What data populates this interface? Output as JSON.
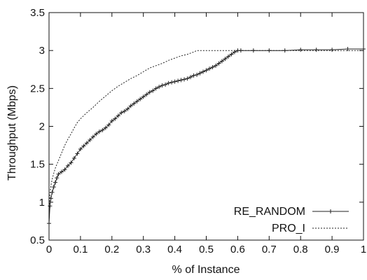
{
  "chart_data": {
    "type": "line",
    "title": "",
    "xlabel": "% of Instance",
    "ylabel": "Throughput (Mbps)",
    "xlim": [
      0,
      1
    ],
    "ylim": [
      0.5,
      3.5
    ],
    "x_ticks": [
      "0",
      "0.1",
      "0.2",
      "0.3",
      "0.4",
      "0.5",
      "0.6",
      "0.7",
      "0.8",
      "0.9",
      "1"
    ],
    "y_ticks": [
      "0.5",
      "1",
      "1.5",
      "2",
      "2.5",
      "3",
      "3.5"
    ],
    "grid": false,
    "legend_position": "bottom-right",
    "series": [
      {
        "name": "RE_RANDOM",
        "line_style": "solid",
        "marker": "plus",
        "color": "#222222",
        "x": [
          0.0,
          0.003,
          0.006,
          0.01,
          0.015,
          0.02,
          0.025,
          0.03,
          0.04,
          0.05,
          0.06,
          0.07,
          0.08,
          0.09,
          0.1,
          0.11,
          0.12,
          0.13,
          0.14,
          0.15,
          0.16,
          0.17,
          0.18,
          0.19,
          0.2,
          0.21,
          0.22,
          0.23,
          0.24,
          0.25,
          0.26,
          0.27,
          0.28,
          0.29,
          0.3,
          0.31,
          0.32,
          0.33,
          0.34,
          0.35,
          0.36,
          0.37,
          0.38,
          0.39,
          0.4,
          0.41,
          0.42,
          0.43,
          0.44,
          0.45,
          0.46,
          0.47,
          0.48,
          0.49,
          0.5,
          0.51,
          0.52,
          0.53,
          0.54,
          0.55,
          0.56,
          0.57,
          0.58,
          0.59,
          0.6,
          0.61,
          0.65,
          0.7,
          0.75,
          0.8,
          0.85,
          0.9,
          0.95,
          1.0
        ],
        "y": [
          0.72,
          0.95,
          1.05,
          1.13,
          1.2,
          1.26,
          1.32,
          1.37,
          1.4,
          1.43,
          1.48,
          1.52,
          1.58,
          1.64,
          1.7,
          1.74,
          1.78,
          1.82,
          1.86,
          1.9,
          1.93,
          1.95,
          1.98,
          2.02,
          2.07,
          2.1,
          2.14,
          2.18,
          2.2,
          2.23,
          2.27,
          2.3,
          2.33,
          2.36,
          2.39,
          2.42,
          2.45,
          2.47,
          2.5,
          2.52,
          2.54,
          2.55,
          2.57,
          2.58,
          2.59,
          2.6,
          2.61,
          2.62,
          2.63,
          2.65,
          2.67,
          2.68,
          2.7,
          2.72,
          2.74,
          2.76,
          2.78,
          2.8,
          2.83,
          2.86,
          2.89,
          2.92,
          2.95,
          2.98,
          3.0,
          3.0,
          3.0,
          3.0,
          3.0,
          3.01,
          3.01,
          3.01,
          3.02,
          3.02
        ]
      },
      {
        "name": "PRO_I",
        "line_style": "dashed",
        "marker": "none",
        "color": "#222222",
        "x": [
          0.0,
          0.003,
          0.006,
          0.01,
          0.015,
          0.02,
          0.03,
          0.04,
          0.05,
          0.06,
          0.07,
          0.08,
          0.09,
          0.1,
          0.12,
          0.14,
          0.16,
          0.18,
          0.2,
          0.22,
          0.24,
          0.26,
          0.28,
          0.3,
          0.32,
          0.34,
          0.36,
          0.38,
          0.4,
          0.42,
          0.44,
          0.46,
          0.47,
          0.5,
          0.55,
          0.6,
          0.7,
          0.8,
          0.9,
          1.0
        ],
        "y": [
          0.75,
          1.1,
          1.22,
          1.3,
          1.38,
          1.45,
          1.55,
          1.65,
          1.75,
          1.83,
          1.9,
          1.98,
          2.05,
          2.1,
          2.18,
          2.25,
          2.33,
          2.4,
          2.47,
          2.53,
          2.58,
          2.63,
          2.67,
          2.72,
          2.77,
          2.8,
          2.83,
          2.87,
          2.9,
          2.93,
          2.95,
          2.98,
          3.0,
          3.0,
          3.0,
          3.0,
          3.0,
          3.0,
          3.0,
          3.0
        ]
      }
    ]
  }
}
